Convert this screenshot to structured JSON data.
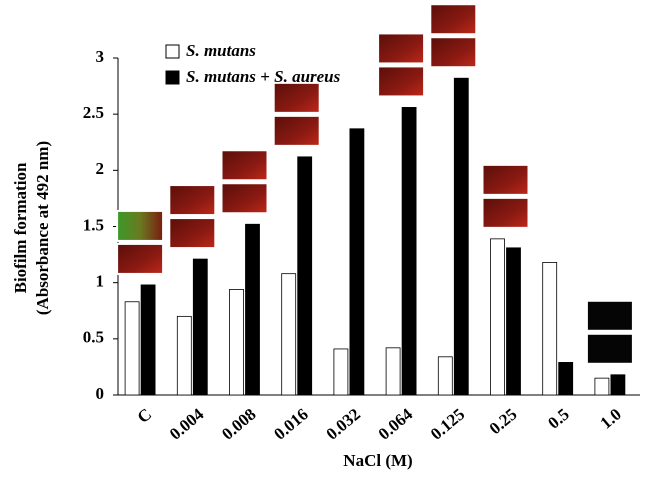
{
  "chart_data": {
    "type": "bar",
    "ylabel": [
      "Biofilm formation",
      "(Absorbance at 492 nm)"
    ],
    "xlabel": "NaCl (M)",
    "categories": [
      "C",
      "0.004",
      "0.008",
      "0.016",
      "0.032",
      "0.064",
      "0.125",
      "0.25",
      "0.5",
      "1.0"
    ],
    "series": [
      {
        "name": "S. mutans",
        "color": "#ffffff",
        "values": [
          0.83,
          0.7,
          0.94,
          1.08,
          0.41,
          0.42,
          0.34,
          1.39,
          1.18,
          0.15
        ]
      },
      {
        "name": "S. mutans + S. aureus",
        "color": "#000000",
        "values": [
          0.98,
          1.21,
          1.52,
          2.12,
          2.37,
          2.56,
          2.82,
          1.31,
          0.29,
          0.18
        ]
      }
    ],
    "ylim": [
      0,
      3
    ],
    "yticks": [
      0,
      0.5,
      1,
      1.5,
      2,
      2.5,
      3
    ]
  }
}
